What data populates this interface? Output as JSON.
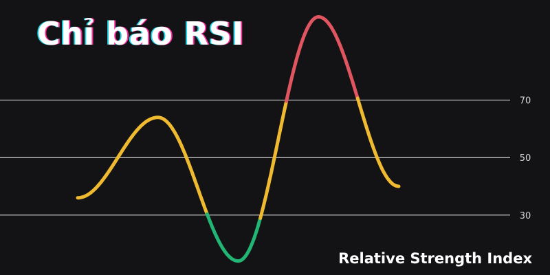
{
  "title": "Chỉ báo RSI",
  "subtitle": "Relative Strength Index",
  "colors": {
    "background": "#131316",
    "gridline": "#cfcfcf",
    "tick_text": "#d6d6d6",
    "neutral": "#efba30",
    "overbought": "#e05560",
    "oversold": "#22b574"
  },
  "chart_data": {
    "type": "line",
    "title": "Chỉ báo RSI",
    "subtitle": "Relative Strength Index",
    "xlabel": "",
    "ylabel": "",
    "y_ticks": [
      70,
      50,
      30
    ],
    "ylim": [
      12,
      102
    ],
    "overbought_level": 70,
    "oversold_level": 30,
    "grid": "horizontal lines at 30, 50, 70",
    "series": [
      {
        "points": [
          [
            0,
            36
          ],
          [
            1,
            64
          ],
          [
            2,
            14
          ],
          [
            3,
            99
          ],
          [
            4,
            40
          ]
        ]
      }
    ]
  }
}
